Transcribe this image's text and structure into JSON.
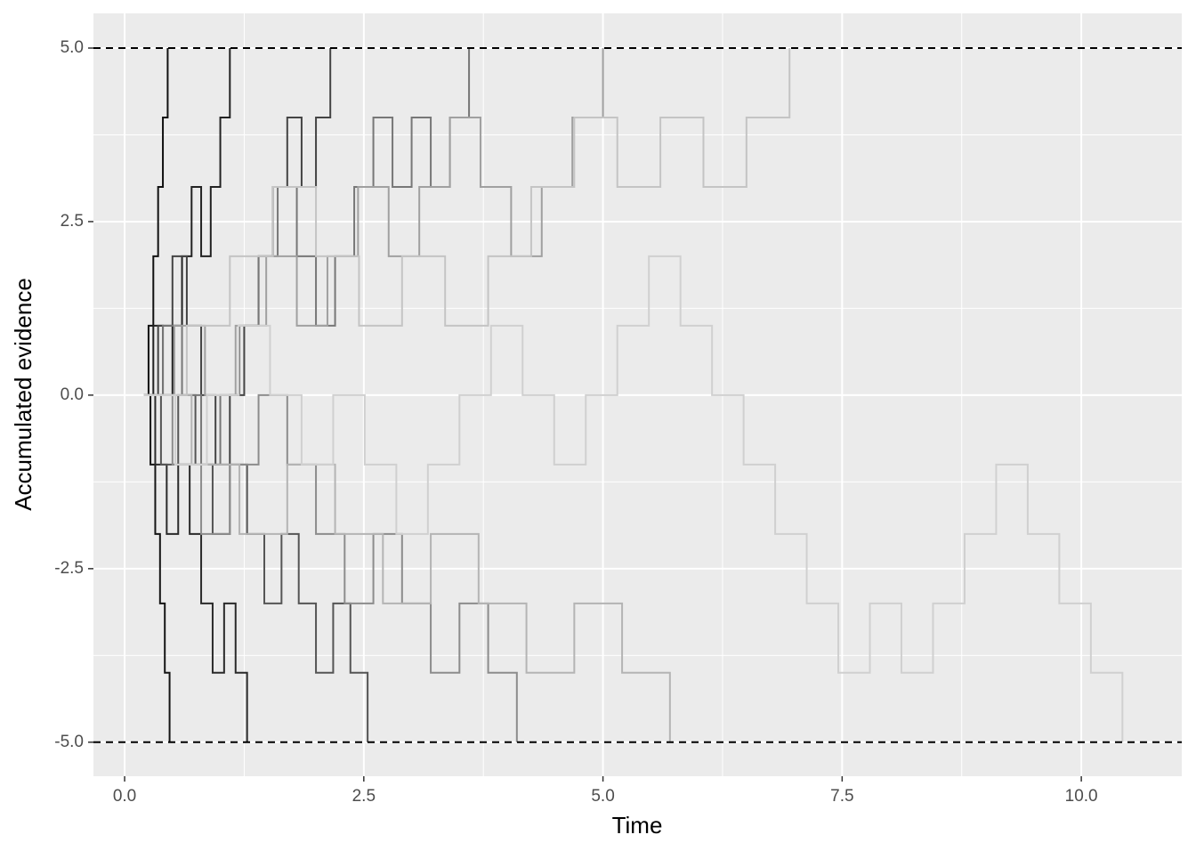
{
  "chart_data": {
    "type": "step",
    "x_label": "Time",
    "y_label": "Accumulated evidence",
    "xlim": [
      -0.326,
      11.05
    ],
    "ylim": [
      -5.49,
      5.5
    ],
    "xticks": [
      {
        "value": 0,
        "label": "0.0"
      },
      {
        "value": 2.5,
        "label": "2.5"
      },
      {
        "value": 5,
        "label": "5.0"
      },
      {
        "value": 7.5,
        "label": "7.5"
      },
      {
        "value": 10,
        "label": "10.0"
      }
    ],
    "yticks": [
      {
        "value": -5,
        "label": "-5.0"
      },
      {
        "value": -2.5,
        "label": "-2.5"
      },
      {
        "value": 0,
        "label": "0.0"
      },
      {
        "value": 2.5,
        "label": "2.5"
      },
      {
        "value": 5,
        "label": "5.0"
      }
    ],
    "thresholds": [
      5,
      -5
    ],
    "grid": true,
    "series": [
      {
        "color": "#111111",
        "x": [
          0.2,
          0.25,
          0.3,
          0.35,
          0.4,
          0.45
        ],
        "values": [
          0,
          1,
          2,
          3,
          4,
          5
        ]
      },
      {
        "color": "#151515",
        "x": [
          0.22,
          0.27,
          0.32,
          0.37,
          0.42,
          0.47
        ],
        "values": [
          0,
          -1,
          -2,
          -3,
          -4,
          -5
        ]
      },
      {
        "color": "#222222",
        "x": [
          0.2,
          0.3,
          0.4,
          0.5,
          0.6,
          0.7,
          0.8,
          0.9,
          1.0,
          1.1
        ],
        "values": [
          0,
          1,
          0,
          1,
          2,
          3,
          2,
          3,
          4,
          5
        ]
      },
      {
        "color": "#2a2a2a",
        "x": [
          0.2,
          0.32,
          0.44,
          0.56,
          0.68,
          0.8,
          0.92,
          1.04,
          1.16,
          1.28
        ],
        "values": [
          0,
          -1,
          -2,
          -1,
          -2,
          -3,
          -4,
          -3,
          -4,
          -5
        ]
      },
      {
        "color": "#444444",
        "x": [
          0.2,
          0.35,
          0.5,
          0.65,
          0.8,
          0.95,
          1.1,
          1.25,
          1.4,
          1.55,
          1.7,
          1.85,
          2.0,
          2.15
        ],
        "values": [
          0,
          1,
          2,
          1,
          0,
          -1,
          0,
          1,
          2,
          3,
          4,
          3,
          4,
          5
        ]
      },
      {
        "color": "#555555",
        "x": [
          0.2,
          0.38,
          0.56,
          0.74,
          0.92,
          1.1,
          1.28,
          1.46,
          1.64,
          1.82,
          2.0,
          2.18,
          2.36,
          2.54
        ],
        "values": [
          0,
          -1,
          0,
          -1,
          -2,
          -1,
          -2,
          -3,
          -2,
          -3,
          -4,
          -3,
          -4,
          -5
        ]
      },
      {
        "color": "#777777",
        "x": [
          0.2,
          0.4,
          0.6,
          0.8,
          1.0,
          1.2,
          1.4,
          1.6,
          1.8,
          2.0,
          2.2,
          2.4,
          2.6,
          2.8,
          3.0,
          3.2,
          3.4,
          3.6
        ],
        "values": [
          0,
          1,
          0,
          -1,
          0,
          1,
          2,
          3,
          2,
          1,
          2,
          3,
          4,
          3,
          4,
          3,
          4,
          5
        ]
      },
      {
        "color": "#8c8c8c",
        "x": [
          0.2,
          0.5,
          0.8,
          1.1,
          1.4,
          1.7,
          2.0,
          2.3,
          2.6,
          2.9,
          3.2,
          3.5,
          3.8,
          4.1
        ],
        "values": [
          0,
          -1,
          -2,
          -1,
          0,
          -1,
          -2,
          -3,
          -2,
          -3,
          -4,
          -3,
          -4,
          -5
        ]
      },
      {
        "color": "#a0a0a0",
        "x": [
          0.2,
          0.52,
          0.84,
          1.16,
          1.48,
          1.8,
          2.12,
          2.44,
          2.76,
          3.08,
          3.4,
          3.72,
          4.04,
          4.36,
          4.68,
          5.0
        ],
        "values": [
          0,
          1,
          0,
          1,
          2,
          1,
          2,
          3,
          2,
          3,
          4,
          3,
          2,
          3,
          4,
          5
        ]
      },
      {
        "color": "#b4b4b4",
        "x": [
          0.2,
          0.7,
          1.2,
          1.7,
          2.2,
          2.7,
          3.2,
          3.7,
          4.2,
          4.7,
          5.2,
          5.7
        ],
        "values": [
          0,
          -1,
          -2,
          -1,
          -2,
          -3,
          -2,
          -3,
          -4,
          -3,
          -4,
          -5
        ]
      },
      {
        "color": "#c4c4c4",
        "x": [
          0.2,
          0.65,
          1.1,
          1.55,
          2.0,
          2.45,
          2.9,
          3.35,
          3.8,
          4.25,
          4.7,
          5.15,
          5.6,
          6.05,
          6.5,
          6.95
        ],
        "values": [
          0,
          1,
          2,
          3,
          2,
          1,
          2,
          1,
          2,
          3,
          4,
          3,
          4,
          3,
          4,
          5
        ]
      },
      {
        "color": "#d0d0d0",
        "x": [
          0.2,
          0.53,
          0.86,
          1.19,
          1.52,
          1.85,
          2.18,
          2.51,
          2.84,
          3.17,
          3.5,
          3.83,
          4.16,
          4.49,
          4.82,
          5.15,
          5.48,
          5.81,
          6.14,
          6.47,
          6.8,
          7.13,
          7.46,
          7.79,
          8.12,
          8.45,
          8.78,
          9.11,
          9.44,
          9.77,
          10.1,
          10.43
        ],
        "values": [
          0,
          -1,
          0,
          1,
          0,
          -1,
          0,
          -1,
          -2,
          -1,
          0,
          1,
          0,
          -1,
          0,
          1,
          2,
          1,
          0,
          -1,
          -2,
          -3,
          -4,
          -3,
          -4,
          -3,
          -2,
          -1,
          -2,
          -3,
          -4,
          -5
        ]
      }
    ]
  }
}
